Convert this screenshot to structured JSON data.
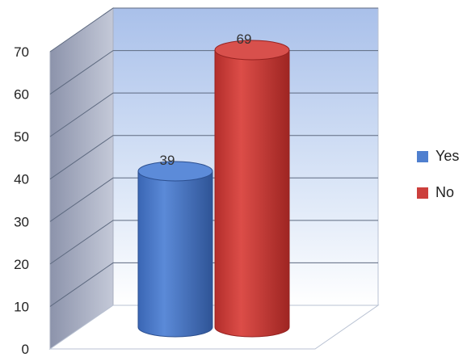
{
  "chart_data": {
    "type": "bar",
    "style": "3d-cylinder",
    "categories": [
      "Yes",
      "No"
    ],
    "values": [
      39,
      69
    ],
    "data_labels": [
      "39",
      "69"
    ],
    "ylim": [
      0,
      70
    ],
    "yticks": [
      "0",
      "10",
      "20",
      "30",
      "40",
      "50",
      "60",
      "70"
    ],
    "grid": true,
    "legend": {
      "position": "right",
      "entries": [
        "Yes",
        "No"
      ]
    },
    "colors": {
      "Yes": "#4f7fcf",
      "No": "#cc3f3c",
      "back_wall_top": "#aec4ea",
      "back_wall_bottom": "#ffffff",
      "side_wall": "#9aa1b8"
    }
  }
}
